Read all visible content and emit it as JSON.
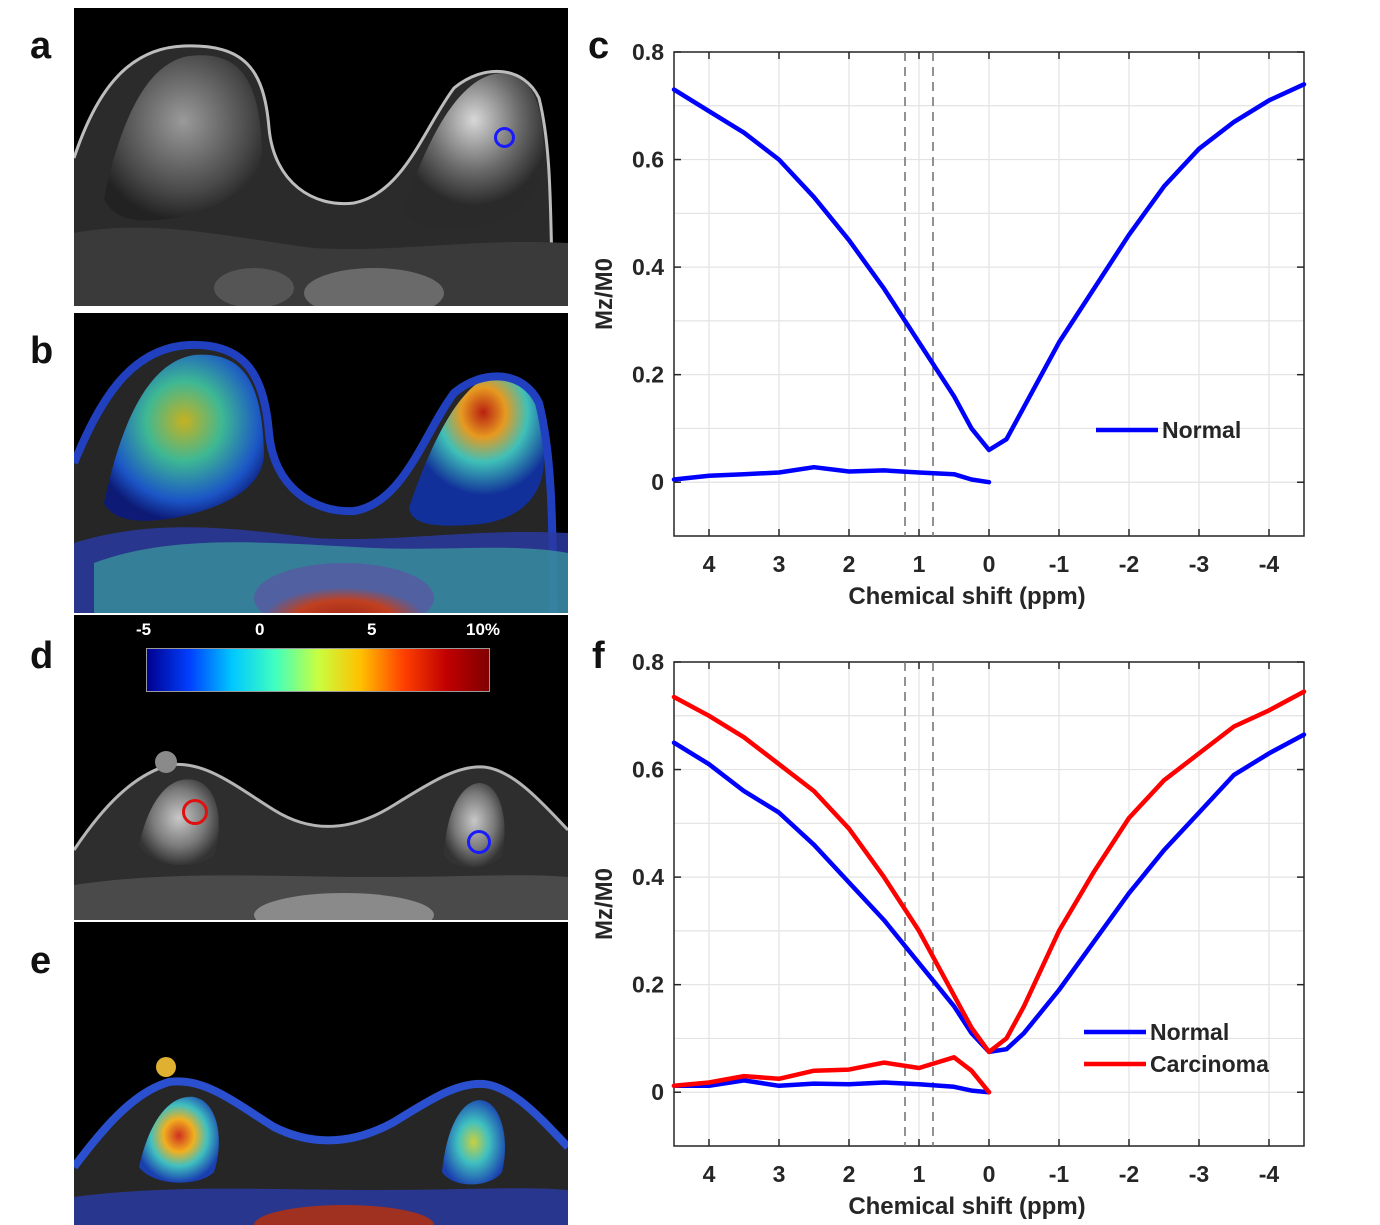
{
  "panels": {
    "a": "a",
    "b": "b",
    "c": "c",
    "d": "d",
    "e": "e",
    "f": "f"
  },
  "colorbar": {
    "ticks": [
      "-5",
      "0",
      "5",
      "10%"
    ],
    "colors": [
      "#00008f",
      "#0040ff",
      "#00c8ff",
      "#40ffc0",
      "#c8ff40",
      "#ffc000",
      "#ff4000",
      "#c00000",
      "#800000"
    ]
  },
  "roi_colors": {
    "normal": "#1a1aff",
    "carcinoma": "#e01010"
  },
  "chart_data": [
    {
      "type": "line",
      "panel": "c",
      "title": "",
      "xlabel": "Chemical shift (ppm)",
      "ylabel": "Mz/M0",
      "xlim": [
        4.5,
        -4.5
      ],
      "ylim": [
        -0.1,
        0.8
      ],
      "x_reversed": true,
      "xticks": [
        4,
        3,
        2,
        1,
        0,
        -1,
        -2,
        -3,
        -4
      ],
      "xtick_labels": [
        "4",
        "3",
        "2",
        "1",
        "0",
        "-1",
        "-2",
        "-3",
        "-4"
      ],
      "yticks": [
        0,
        0.2,
        0.4,
        0.6,
        0.8
      ],
      "ytick_labels": [
        "0",
        "0.2",
        "0.4",
        "0.6",
        "0.8"
      ],
      "grid": true,
      "vlines": [
        1.2,
        0.8
      ],
      "legend_position": "right",
      "series": [
        {
          "name": "Normal",
          "color": "#0000ff",
          "role": "z-spectrum",
          "in_legend": true,
          "x": [
            4.5,
            4.0,
            3.5,
            3.0,
            2.5,
            2.0,
            1.5,
            1.0,
            0.5,
            0.25,
            0.0,
            -0.25,
            -0.5,
            -1.0,
            -1.5,
            -2.0,
            -2.5,
            -3.0,
            -3.5,
            -4.0,
            -4.5
          ],
          "y": [
            0.73,
            0.69,
            0.65,
            0.6,
            0.53,
            0.45,
            0.36,
            0.26,
            0.16,
            0.1,
            0.06,
            0.08,
            0.14,
            0.26,
            0.36,
            0.46,
            0.55,
            0.62,
            0.67,
            0.71,
            0.74
          ]
        },
        {
          "name": "Normal",
          "color": "#0000ff",
          "role": "asymmetry",
          "in_legend": false,
          "x": [
            4.5,
            4.0,
            3.5,
            3.0,
            2.5,
            2.0,
            1.5,
            1.0,
            0.5,
            0.25,
            0.0
          ],
          "y": [
            0.005,
            0.012,
            0.015,
            0.018,
            0.028,
            0.02,
            0.022,
            0.018,
            0.015,
            0.005,
            0.0
          ]
        }
      ]
    },
    {
      "type": "line",
      "panel": "f",
      "title": "",
      "xlabel": "Chemical shift (ppm)",
      "ylabel": "Mz/M0",
      "xlim": [
        4.5,
        -4.5
      ],
      "ylim": [
        -0.1,
        0.8
      ],
      "x_reversed": true,
      "xticks": [
        4,
        3,
        2,
        1,
        0,
        -1,
        -2,
        -3,
        -4
      ],
      "xtick_labels": [
        "4",
        "3",
        "2",
        "1",
        "0",
        "-1",
        "-2",
        "-3",
        "-4"
      ],
      "yticks": [
        0,
        0.2,
        0.4,
        0.6,
        0.8
      ],
      "ytick_labels": [
        "0",
        "0.2",
        "0.4",
        "0.6",
        "0.8"
      ],
      "grid": true,
      "vlines": [
        1.2,
        0.8
      ],
      "legend_position": "lower-right",
      "series": [
        {
          "name": "Normal",
          "color": "#0000ff",
          "role": "z-spectrum",
          "in_legend": true,
          "x": [
            4.5,
            4.0,
            3.5,
            3.0,
            2.5,
            2.0,
            1.5,
            1.0,
            0.5,
            0.25,
            0.0,
            -0.25,
            -0.5,
            -1.0,
            -1.5,
            -2.0,
            -2.5,
            -3.0,
            -3.5,
            -4.0,
            -4.5
          ],
          "y": [
            0.65,
            0.61,
            0.56,
            0.52,
            0.46,
            0.39,
            0.32,
            0.24,
            0.16,
            0.11,
            0.075,
            0.08,
            0.11,
            0.19,
            0.28,
            0.37,
            0.45,
            0.52,
            0.59,
            0.63,
            0.665
          ]
        },
        {
          "name": "Carcinoma",
          "color": "#ff0000",
          "role": "z-spectrum",
          "in_legend": true,
          "x": [
            4.5,
            4.0,
            3.5,
            3.0,
            2.5,
            2.0,
            1.5,
            1.0,
            0.5,
            0.25,
            0.0,
            -0.25,
            -0.5,
            -1.0,
            -1.5,
            -2.0,
            -2.5,
            -3.0,
            -3.5,
            -4.0,
            -4.5
          ],
          "y": [
            0.735,
            0.7,
            0.66,
            0.61,
            0.56,
            0.49,
            0.4,
            0.3,
            0.18,
            0.12,
            0.075,
            0.1,
            0.16,
            0.3,
            0.41,
            0.51,
            0.58,
            0.63,
            0.68,
            0.71,
            0.745
          ]
        },
        {
          "name": "Normal",
          "color": "#0000ff",
          "role": "asymmetry",
          "in_legend": false,
          "x": [
            4.5,
            4.0,
            3.5,
            3.0,
            2.5,
            2.0,
            1.5,
            1.0,
            0.5,
            0.25,
            0.0
          ],
          "y": [
            0.012,
            0.012,
            0.022,
            0.012,
            0.016,
            0.015,
            0.018,
            0.015,
            0.01,
            0.003,
            0.0
          ]
        },
        {
          "name": "Carcinoma",
          "color": "#ff0000",
          "role": "asymmetry",
          "in_legend": false,
          "x": [
            4.5,
            4.0,
            3.5,
            3.0,
            2.5,
            2.0,
            1.5,
            1.0,
            0.5,
            0.25,
            0.0
          ],
          "y": [
            0.012,
            0.018,
            0.03,
            0.025,
            0.04,
            0.042,
            0.055,
            0.045,
            0.065,
            0.04,
            0.0
          ]
        }
      ]
    }
  ]
}
